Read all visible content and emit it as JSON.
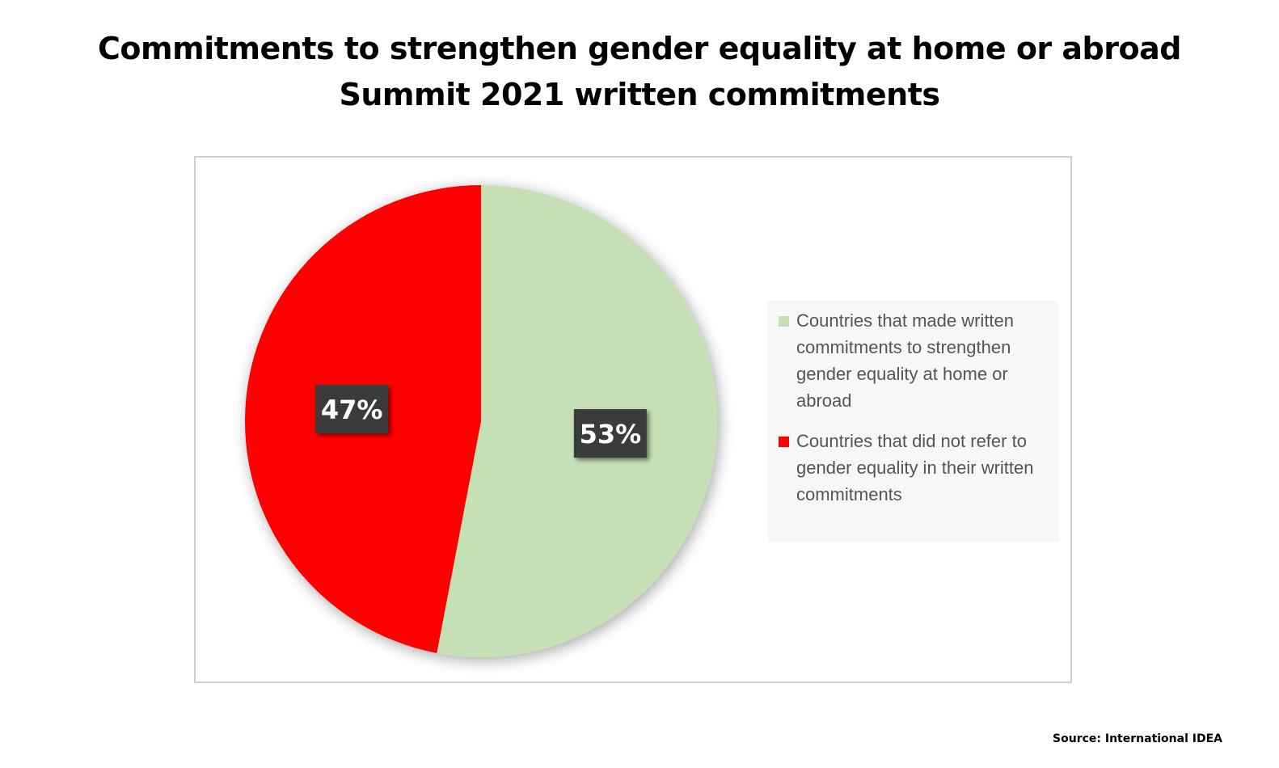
{
  "title": {
    "line1": "Commitments to strengthen gender equality at home or abroad",
    "line2": "Summit 2021 written commitments"
  },
  "source": "Source: International IDEA",
  "chart_data": {
    "type": "pie",
    "categories": [
      "Countries that made written commitments to strengthen gender equality at home or abroad",
      "Countries that did not refer to gender equality in their written commitments"
    ],
    "values": [
      53,
      47
    ],
    "labels": [
      "53%",
      "47%"
    ],
    "colors": [
      "#c5e0b4",
      "#ff0000"
    ],
    "legend_position": "right",
    "data_label_style": "dark box with white text"
  }
}
